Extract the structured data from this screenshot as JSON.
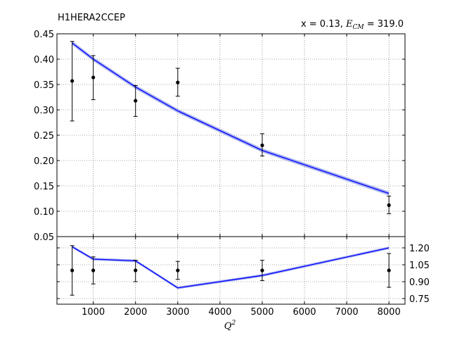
{
  "chart_data": {
    "type": "line",
    "title": "H1HERA2CCEP",
    "annotation": "x = 0.13, E_CM = 319.0",
    "annotation_parts": {
      "prefix": "x = 0.13, ",
      "var": "E",
      "sub": "CM",
      "suffix": " = 319.0"
    },
    "xlabel": "Q",
    "xlabel_sup": "2",
    "grid": true,
    "x_ticks": [
      1000,
      2000,
      3000,
      4000,
      5000,
      6000,
      7000,
      8000
    ],
    "x_ticks_labels": [
      "1000",
      "2000",
      "3000",
      "4000",
      "5000",
      "6000",
      "7000",
      "8000"
    ],
    "xlim": [
      140,
      8380
    ],
    "top_panel": {
      "ylim": [
        0.05,
        0.45
      ],
      "y_ticks": [
        0.05,
        0.1,
        0.15,
        0.2,
        0.25,
        0.3,
        0.35,
        0.4,
        0.45
      ],
      "y_ticks_labels": [
        "0.05",
        "0.10",
        "0.15",
        "0.20",
        "0.25",
        "0.30",
        "0.35",
        "0.40",
        "0.45"
      ],
      "data_points": [
        {
          "x": 500,
          "y": 0.357,
          "ylo": 0.278,
          "yhi": 0.435
        },
        {
          "x": 1000,
          "y": 0.364,
          "ylo": 0.32,
          "yhi": 0.407
        },
        {
          "x": 2000,
          "y": 0.318,
          "ylo": 0.287,
          "yhi": 0.348
        },
        {
          "x": 3000,
          "y": 0.354,
          "ylo": 0.327,
          "yhi": 0.382
        },
        {
          "x": 5000,
          "y": 0.23,
          "ylo": 0.209,
          "yhi": 0.253
        },
        {
          "x": 8000,
          "y": 0.112,
          "ylo": 0.095,
          "yhi": 0.13
        }
      ],
      "theory_line": [
        {
          "x": 500,
          "y": 0.432
        },
        {
          "x": 1000,
          "y": 0.4
        },
        {
          "x": 2000,
          "y": 0.345
        },
        {
          "x": 3000,
          "y": 0.298
        },
        {
          "x": 5000,
          "y": 0.22
        },
        {
          "x": 8000,
          "y": 0.135
        }
      ],
      "theory_band_halfwidth": 0.004
    },
    "bottom_panel": {
      "ylim": [
        0.7,
        1.3
      ],
      "y_ticks": [
        0.75,
        0.9,
        1.05,
        1.2
      ],
      "y_ticks_labels": [
        "0.75",
        "0.90",
        "1.05",
        "1.20"
      ],
      "y_axis_side": "right",
      "data_points": [
        {
          "x": 500,
          "y": 1.0,
          "ylo": 0.78,
          "yhi": 1.22
        },
        {
          "x": 1000,
          "y": 1.0,
          "ylo": 0.88,
          "yhi": 1.12
        },
        {
          "x": 2000,
          "y": 1.0,
          "ylo": 0.9,
          "yhi": 1.09
        },
        {
          "x": 3000,
          "y": 1.0,
          "ylo": 0.92,
          "yhi": 1.08
        },
        {
          "x": 5000,
          "y": 1.0,
          "ylo": 0.91,
          "yhi": 1.09
        },
        {
          "x": 8000,
          "y": 1.0,
          "ylo": 0.85,
          "yhi": 1.15
        }
      ],
      "theory_line": [
        {
          "x": 500,
          "y": 1.21
        },
        {
          "x": 1000,
          "y": 1.1
        },
        {
          "x": 2000,
          "y": 1.085
        },
        {
          "x": 3000,
          "y": 0.845
        },
        {
          "x": 5000,
          "y": 0.955
        },
        {
          "x": 8000,
          "y": 1.2
        }
      ],
      "theory_band_halfwidth": 0.012
    },
    "colors": {
      "theory": "#0000ff",
      "band": "#aab4ee",
      "data": "#000000",
      "grid": "#555555"
    }
  }
}
